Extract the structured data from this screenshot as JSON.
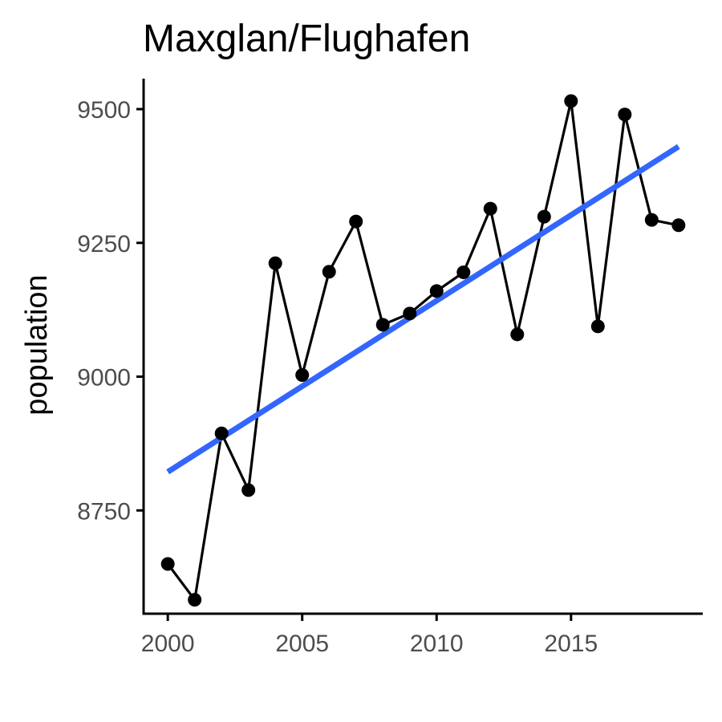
{
  "chart_data": {
    "type": "line",
    "title": "Maxglan/Flughafen",
    "xlabel": "",
    "ylabel": "population",
    "x": [
      2000,
      2001,
      2002,
      2003,
      2004,
      2005,
      2006,
      2007,
      2008,
      2009,
      2010,
      2011,
      2012,
      2013,
      2014,
      2015,
      2016,
      2017,
      2018,
      2019
    ],
    "series": [
      {
        "values": [
          8650,
          8583,
          8894,
          8788,
          9212,
          9003,
          9196,
          9290,
          9097,
          9118,
          9160,
          9195,
          9314,
          9079,
          9299,
          9515,
          9094,
          9490,
          9293,
          9283
        ]
      }
    ],
    "trend_line": {
      "x": [
        2000,
        2019
      ],
      "y": [
        8822,
        9430
      ]
    },
    "x_ticks": [
      2000,
      2005,
      2010,
      2015
    ],
    "y_ticks": [
      8750,
      9000,
      9250,
      9500
    ],
    "xlim": [
      1999.1,
      2019.9
    ],
    "ylim": [
      8557,
      9557
    ],
    "grid": false,
    "colors": {
      "series": "#000000",
      "trend": "#3366ff",
      "tick_label": "#4d4d4d"
    }
  }
}
